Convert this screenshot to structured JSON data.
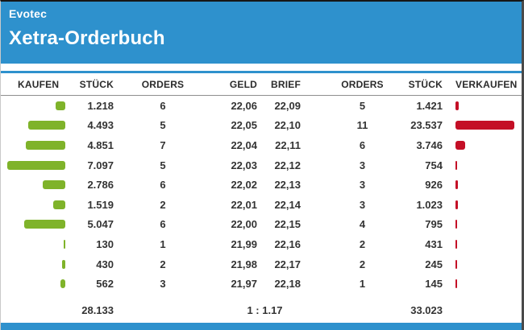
{
  "header": {
    "instrument_label": "Evotec",
    "page_title": "Xetra-Orderbuch"
  },
  "orderbook": {
    "column_headers": {
      "kaufen": "KAUFEN",
      "stueck_buy": "STÜCK",
      "orders_buy": "ORDERS",
      "geld": "GELD",
      "brief": "BRIEF",
      "orders_sell": "ORDERS",
      "stueck_sell": "STÜCK",
      "verkaufen": "VERKAUFEN"
    },
    "rows": [
      {
        "buy_stueck": "1.218",
        "buy_value": 1218,
        "buy_orders": "6",
        "geld": "22,06",
        "brief": "22,09",
        "sell_orders": "5",
        "sell_stueck": "1.421",
        "sell_value": 1421
      },
      {
        "buy_stueck": "4.493",
        "buy_value": 4493,
        "buy_orders": "5",
        "geld": "22,05",
        "brief": "22,10",
        "sell_orders": "11",
        "sell_stueck": "23.537",
        "sell_value": 23537
      },
      {
        "buy_stueck": "4.851",
        "buy_value": 4851,
        "buy_orders": "7",
        "geld": "22,04",
        "brief": "22,11",
        "sell_orders": "6",
        "sell_stueck": "3.746",
        "sell_value": 3746
      },
      {
        "buy_stueck": "7.097",
        "buy_value": 7097,
        "buy_orders": "5",
        "geld": "22,03",
        "brief": "22,12",
        "sell_orders": "3",
        "sell_stueck": "754",
        "sell_value": 754
      },
      {
        "buy_stueck": "2.786",
        "buy_value": 2786,
        "buy_orders": "6",
        "geld": "22,02",
        "brief": "22,13",
        "sell_orders": "3",
        "sell_stueck": "926",
        "sell_value": 926
      },
      {
        "buy_stueck": "1.519",
        "buy_value": 1519,
        "buy_orders": "2",
        "geld": "22,01",
        "brief": "22,14",
        "sell_orders": "3",
        "sell_stueck": "1.023",
        "sell_value": 1023
      },
      {
        "buy_stueck": "5.047",
        "buy_value": 5047,
        "buy_orders": "6",
        "geld": "22,00",
        "brief": "22,15",
        "sell_orders": "4",
        "sell_stueck": "795",
        "sell_value": 795
      },
      {
        "buy_stueck": "130",
        "buy_value": 130,
        "buy_orders": "1",
        "geld": "21,99",
        "brief": "22,16",
        "sell_orders": "2",
        "sell_stueck": "431",
        "sell_value": 431
      },
      {
        "buy_stueck": "430",
        "buy_value": 430,
        "buy_orders": "2",
        "geld": "21,98",
        "brief": "22,17",
        "sell_orders": "2",
        "sell_stueck": "245",
        "sell_value": 245
      },
      {
        "buy_stueck": "562",
        "buy_value": 562,
        "buy_orders": "3",
        "geld": "21,97",
        "brief": "22,18",
        "sell_orders": "1",
        "sell_stueck": "145",
        "sell_value": 145
      }
    ],
    "totals": {
      "buy_total": "28.133",
      "ratio": "1 : 1.17",
      "sell_total": "33.023"
    }
  },
  "colors": {
    "header_blue": "#2E91CD",
    "buy_bar_green": "#7FB32A",
    "sell_bar_red": "#C40F26",
    "text": "#333333"
  }
}
